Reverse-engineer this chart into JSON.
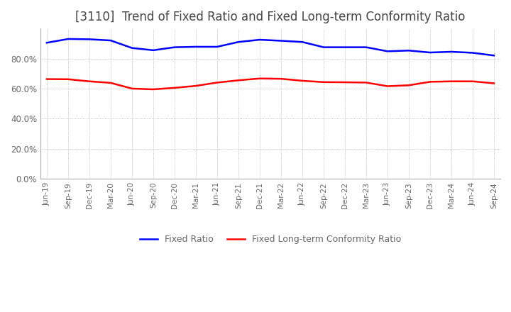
{
  "title": "[3110]  Trend of Fixed Ratio and Fixed Long-term Conformity Ratio",
  "title_fontsize": 12,
  "ylim": [
    0.0,
    1.0
  ],
  "yticks": [
    0.0,
    0.2,
    0.4,
    0.6,
    0.8
  ],
  "ytick_labels": [
    "0.0%",
    "20.0%",
    "40.0%",
    "60.0%",
    "80.0%"
  ],
  "x_labels": [
    "Jun-19",
    "Sep-19",
    "Dec-19",
    "Mar-20",
    "Jun-20",
    "Sep-20",
    "Dec-20",
    "Mar-21",
    "Jun-21",
    "Sep-21",
    "Dec-21",
    "Mar-22",
    "Jun-22",
    "Sep-22",
    "Dec-22",
    "Mar-23",
    "Jun-23",
    "Sep-23",
    "Dec-23",
    "Mar-24",
    "Jun-24",
    "Sep-24"
  ],
  "fixed_ratio": [
    0.905,
    0.93,
    0.928,
    0.92,
    0.87,
    0.855,
    0.875,
    0.878,
    0.878,
    0.91,
    0.925,
    0.918,
    0.91,
    0.875,
    0.875,
    0.875,
    0.848,
    0.853,
    0.84,
    0.845,
    0.838,
    0.82
  ],
  "fixed_lt_ratio": [
    0.663,
    0.662,
    0.648,
    0.638,
    0.6,
    0.595,
    0.605,
    0.618,
    0.64,
    0.655,
    0.667,
    0.665,
    0.652,
    0.643,
    0.642,
    0.64,
    0.616,
    0.622,
    0.645,
    0.648,
    0.648,
    0.635
  ],
  "fixed_ratio_color": "#0000FF",
  "fixed_lt_ratio_color": "#FF0000",
  "background_color": "#FFFFFF",
  "plot_bg_color": "#FFFFFF",
  "grid_color": "#AAAAAA",
  "line_width": 1.8,
  "title_color": "#444444",
  "tick_color": "#666666",
  "legend_label_1": "Fixed Ratio",
  "legend_label_2": "Fixed Long-term Conformity Ratio"
}
